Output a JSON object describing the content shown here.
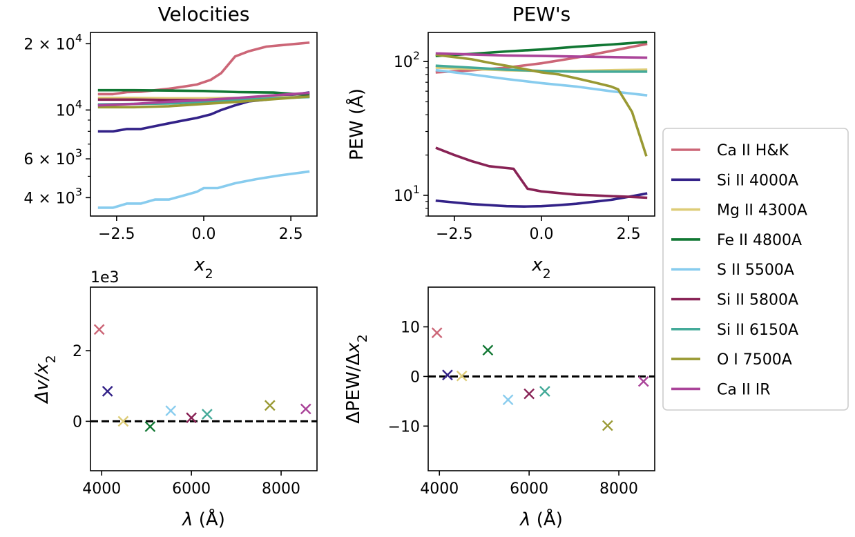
{
  "colors": {
    "Ca II H&K": "#CC6677",
    "Si II 4000A": "#332288",
    "Mg II 4300A": "#DDCC77",
    "Fe II 4800A": "#117733",
    "S II 5500A": "#88CCEE",
    "Si II 5800A": "#882255",
    "Si II 6150A": "#44AA99",
    "O I 7500A": "#999933",
    "Ca II IR": "#AA4499"
  },
  "legend": {
    "placement": "right",
    "entries": [
      "Ca II H&K",
      "Si II 4000A",
      "Mg II 4300A",
      "Fe II 4800A",
      "S II 5500A",
      "Si II 5800A",
      "Si II 6150A",
      "O I 7500A",
      "Ca II IR"
    ]
  },
  "chart_data": [
    {
      "type": "line",
      "title": "Velocities",
      "xlabel": "x_2",
      "ylabel": "",
      "yscale": "log",
      "xlim": [
        -3.25,
        3.25
      ],
      "ylim": [
        3300,
        22500
      ],
      "xticks": [
        -2.5,
        0.0,
        2.5
      ],
      "xtick_labels": [
        "−2.5",
        "0.0",
        "2.5"
      ],
      "yticks": [
        {
          "value": 4000,
          "base": "4 × 10",
          "exp": "3"
        },
        {
          "value": 6000,
          "base": "6 × 10",
          "exp": "3"
        },
        {
          "value": 10000,
          "base": "10",
          "exp": "4"
        },
        {
          "value": 20000,
          "base": "2 × 10",
          "exp": "4"
        }
      ],
      "series": [
        {
          "name": "Ca II H&K",
          "x": [
            -3,
            -2.6,
            -2.2,
            -1.8,
            -1.4,
            -1,
            -0.6,
            -0.2,
            0.2,
            0.5,
            0.9,
            1.3,
            1.8,
            2.4,
            3
          ],
          "values": [
            11800,
            11800,
            12050,
            12100,
            12300,
            12500,
            12750,
            13050,
            13700,
            14700,
            17500,
            18500,
            19400,
            19800,
            20200
          ]
        },
        {
          "name": "Si II 4000A",
          "x": [
            -3,
            -2.6,
            -2.2,
            -1.8,
            -1.4,
            -1,
            -0.6,
            -0.2,
            0.2,
            0.5,
            0.9,
            1.3,
            1.8,
            2.4,
            3
          ],
          "values": [
            8000,
            8000,
            8200,
            8200,
            8450,
            8700,
            8950,
            9200,
            9550,
            10000,
            10500,
            10950,
            11150,
            11650,
            12000
          ]
        },
        {
          "name": "Mg II 4300A",
          "x": [
            -3,
            -2,
            -1,
            0,
            1,
            2,
            3
          ],
          "values": [
            11350,
            11350,
            11300,
            11300,
            11350,
            11400,
            11500
          ]
        },
        {
          "name": "Fe II 4800A",
          "x": [
            -3,
            -2,
            -1,
            0,
            1,
            2,
            3
          ],
          "values": [
            12300,
            12300,
            12250,
            12200,
            12050,
            12000,
            11700
          ]
        },
        {
          "name": "S II 5500A",
          "x": [
            -3,
            -2.6,
            -2.2,
            -1.8,
            -1.4,
            -1,
            -0.6,
            -0.2,
            0,
            0.4,
            0.9,
            1.5,
            2.2,
            3
          ],
          "values": [
            3600,
            3600,
            3760,
            3760,
            3920,
            3920,
            4080,
            4250,
            4420,
            4420,
            4650,
            4850,
            5050,
            5250
          ]
        },
        {
          "name": "Si II 5800A",
          "x": [
            -3,
            -2,
            -1,
            0,
            1,
            2,
            3
          ],
          "values": [
            11150,
            11150,
            11100,
            11100,
            11100,
            11250,
            11500
          ]
        },
        {
          "name": "Si II 6150A",
          "x": [
            -3,
            -2,
            -1,
            0,
            1,
            2,
            3
          ],
          "values": [
            10600,
            10650,
            10700,
            10900,
            11100,
            11300,
            11450
          ]
        },
        {
          "name": "O I 7500A",
          "x": [
            -3,
            -2,
            -1,
            0,
            1,
            2,
            3
          ],
          "values": [
            10300,
            10300,
            10400,
            10650,
            10900,
            11200,
            11500
          ]
        },
        {
          "name": "Ca II IR",
          "x": [
            -3,
            -2,
            -1,
            0,
            1,
            2,
            3
          ],
          "values": [
            10500,
            10650,
            10900,
            11100,
            11350,
            11650,
            11950
          ]
        }
      ]
    },
    {
      "type": "line",
      "title": "PEW's",
      "xlabel": "x_2",
      "ylabel": "PEW (Å)",
      "yscale": "log",
      "xlim": [
        -3.25,
        3.25
      ],
      "ylim": [
        7,
        165
      ],
      "xticks": [
        -2.5,
        0.0,
        2.5
      ],
      "xtick_labels": [
        "−2.5",
        "0.0",
        "2.5"
      ],
      "yticks": [
        {
          "value": 10,
          "base": "10",
          "exp": "1"
        },
        {
          "value": 100,
          "base": "10",
          "exp": "2"
        }
      ],
      "series": [
        {
          "name": "Ca II H&K",
          "x": [
            -3,
            -2,
            -1,
            0,
            1,
            2,
            3
          ],
          "values": [
            83,
            86,
            90,
            97,
            107,
            120,
            135
          ]
        },
        {
          "name": "Si II 4000A",
          "x": [
            -3,
            -2,
            -1,
            -0.5,
            0,
            0.5,
            1,
            1.5,
            2,
            2.5,
            3
          ],
          "values": [
            9.1,
            8.6,
            8.3,
            8.25,
            8.3,
            8.45,
            8.65,
            8.95,
            9.25,
            9.75,
            10.3
          ]
        },
        {
          "name": "Mg II 4300A",
          "x": [
            -3,
            -2,
            -1,
            0,
            1,
            2,
            3
          ],
          "values": [
            90,
            88,
            86,
            85,
            85,
            86,
            87
          ]
        },
        {
          "name": "Fe II 4800A",
          "x": [
            -3,
            -2,
            -1,
            0,
            1,
            2,
            3
          ],
          "values": [
            110,
            114,
            119,
            123,
            129,
            134,
            140
          ]
        },
        {
          "name": "S II 5500A",
          "x": [
            -3,
            -2,
            -1,
            0,
            1,
            2,
            3
          ],
          "values": [
            86,
            80,
            74,
            69,
            65,
            60,
            56
          ]
        },
        {
          "name": "Si II 5800A",
          "x": [
            -3,
            -2.5,
            -2,
            -1.5,
            -0.8,
            -0.4,
            0,
            0.5,
            1,
            1.5,
            2,
            2.5,
            3
          ],
          "values": [
            22.5,
            20,
            18,
            16.5,
            15.8,
            11.2,
            10.7,
            10.4,
            10.1,
            10,
            9.85,
            9.75,
            9.6
          ]
        },
        {
          "name": "Si II 6150A",
          "x": [
            -3,
            -2,
            -1,
            0,
            1,
            2,
            3
          ],
          "values": [
            93,
            90,
            87,
            85,
            84,
            84,
            84
          ]
        },
        {
          "name": "O I 7500A",
          "x": [
            -3,
            -2.5,
            -2,
            -1.5,
            -1,
            -0.5,
            0,
            0.5,
            1,
            1.5,
            2,
            2.2,
            2.6,
            3
          ],
          "values": [
            112,
            108,
            104,
            98,
            93,
            88,
            83,
            80,
            75,
            70,
            65,
            62,
            42,
            20
          ]
        },
        {
          "name": "Ca II IR",
          "x": [
            -3,
            -2,
            -1,
            0,
            1,
            2,
            3
          ],
          "values": [
            115,
            113,
            111,
            110,
            109,
            108,
            107
          ]
        }
      ]
    },
    {
      "type": "scatter",
      "title": "",
      "xlabel": "λ (Å)",
      "ylabel": "Δv/x_2",
      "offset_text": "1e3",
      "xlim": [
        3750,
        8800
      ],
      "ylim": [
        -1.4,
        3.8
      ],
      "xticks": [
        4000,
        6000,
        8000
      ],
      "yticks": [
        0,
        2
      ],
      "hline": 0,
      "points": [
        {
          "name": "Ca II H&K",
          "x": 3945,
          "y": 2.6
        },
        {
          "name": "Si II 4000A",
          "x": 4130,
          "y": 0.85
        },
        {
          "name": "Mg II 4300A",
          "x": 4480,
          "y": 0.0
        },
        {
          "name": "Fe II 4800A",
          "x": 5080,
          "y": -0.15
        },
        {
          "name": "S II 5500A",
          "x": 5540,
          "y": 0.3
        },
        {
          "name": "Si II 5800A",
          "x": 6000,
          "y": 0.1
        },
        {
          "name": "Si II 6150A",
          "x": 6350,
          "y": 0.2
        },
        {
          "name": "O I 7500A",
          "x": 7750,
          "y": 0.45
        },
        {
          "name": "Ca II IR",
          "x": 8550,
          "y": 0.35
        }
      ]
    },
    {
      "type": "scatter",
      "title": "",
      "xlabel": "λ (Å)",
      "ylabel": "ΔPEW/Δx_2",
      "xlim": [
        3750,
        8800
      ],
      "ylim": [
        -19,
        18
      ],
      "xticks": [
        4000,
        6000,
        8000
      ],
      "yticks": [
        -10,
        0,
        10
      ],
      "ytick_labels": [
        "−10",
        "0",
        "10"
      ],
      "hline": 0,
      "points": [
        {
          "name": "Ca II H&K",
          "x": 3945,
          "y": 8.8
        },
        {
          "name": "Si II 4000A",
          "x": 4180,
          "y": 0.3
        },
        {
          "name": "Mg II 4300A",
          "x": 4500,
          "y": 0.1
        },
        {
          "name": "Fe II 4800A",
          "x": 5080,
          "y": 5.3
        },
        {
          "name": "S II 5500A",
          "x": 5530,
          "y": -4.7
        },
        {
          "name": "Si II 5800A",
          "x": 6000,
          "y": -3.5
        },
        {
          "name": "Si II 6150A",
          "x": 6350,
          "y": -3.0
        },
        {
          "name": "O I 7500A",
          "x": 7750,
          "y": -9.9
        },
        {
          "name": "Ca II IR",
          "x": 8550,
          "y": -1.0
        }
      ]
    }
  ]
}
